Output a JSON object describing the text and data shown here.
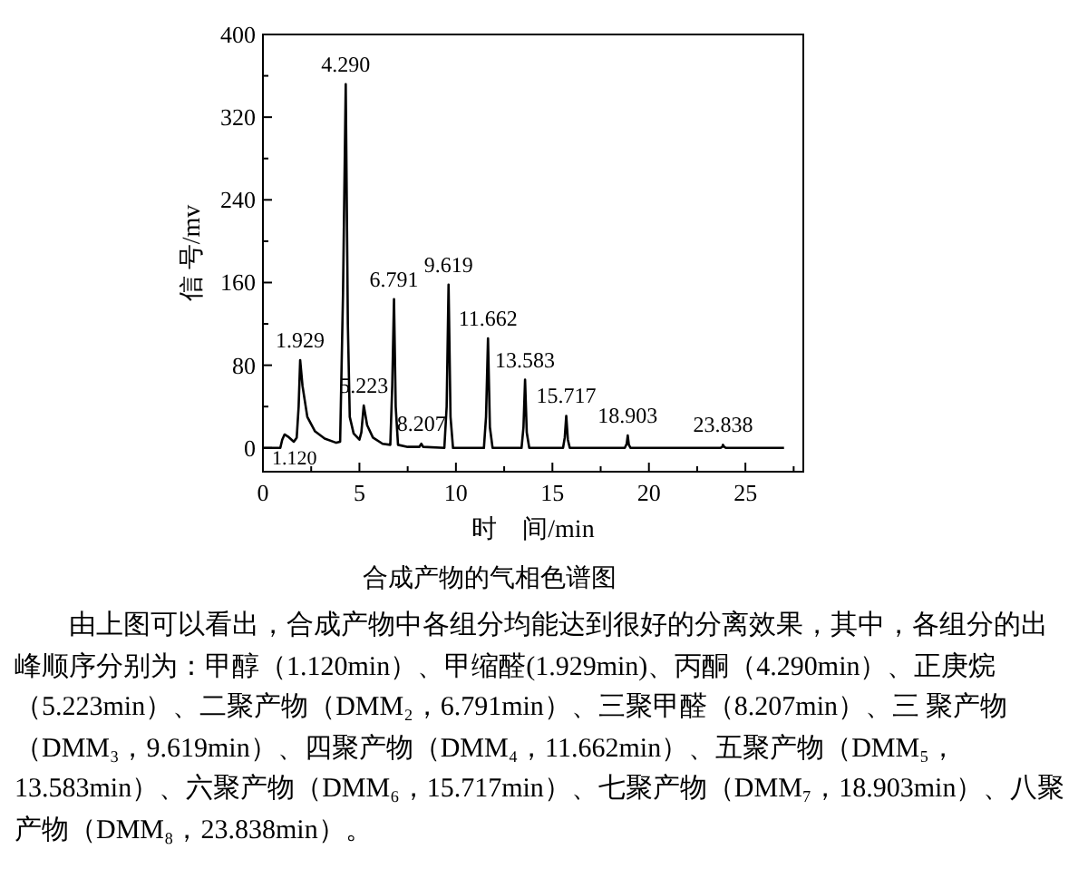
{
  "chart_data": {
    "type": "line",
    "xlabel": "时　间/min",
    "ylabel": "信 号/mv",
    "xlim": [
      0,
      28
    ],
    "ylim": [
      -23,
      400
    ],
    "xticks": [
      0,
      {
        "value": 2.5,
        "label": null
      },
      5,
      {
        "value": 7.5,
        "label": null
      },
      10,
      {
        "value": 12.5,
        "label": null
      },
      15,
      {
        "value": 17.5,
        "label": null
      },
      20,
      {
        "value": 22.5,
        "label": null
      },
      25,
      {
        "value": 27.5,
        "label": null
      }
    ],
    "yticks": [
      0,
      {
        "value": 40,
        "label": null
      },
      80,
      {
        "value": 120,
        "label": null
      },
      160,
      {
        "value": 200,
        "label": null
      },
      240,
      {
        "value": 280,
        "label": null
      },
      320,
      {
        "value": 360,
        "label": null
      },
      400
    ],
    "grid": false,
    "marker": "none",
    "line_style": "solid",
    "series": [
      {
        "color": "#000000",
        "x": [
          0,
          0.9,
          1.0,
          1.12,
          1.3,
          1.6,
          1.75,
          1.85,
          1.929,
          2.05,
          2.3,
          2.7,
          3.2,
          3.8,
          4.0,
          4.15,
          4.29,
          4.4,
          4.5,
          4.7,
          5.0,
          5.1,
          5.223,
          5.4,
          5.7,
          6.2,
          6.6,
          6.7,
          6.791,
          6.88,
          7.0,
          7.5,
          8.1,
          8.207,
          8.3,
          9.4,
          9.52,
          9.619,
          9.72,
          9.85,
          11.45,
          11.56,
          11.662,
          11.76,
          11.9,
          13.4,
          13.5,
          13.583,
          13.67,
          13.8,
          15.55,
          15.64,
          15.717,
          15.8,
          15.9,
          18.75,
          18.85,
          18.903,
          18.96,
          19.05,
          23.7,
          23.8,
          23.838,
          23.9,
          24.0,
          27.0
        ],
        "values": [
          0,
          0,
          8,
          13,
          11,
          6,
          10,
          40,
          85,
          60,
          30,
          16,
          9,
          5,
          6,
          150,
          352,
          120,
          30,
          14,
          8,
          15,
          41,
          22,
          10,
          4,
          3,
          60,
          144,
          40,
          3,
          1,
          1,
          4,
          1,
          0,
          40,
          158,
          30,
          0,
          0,
          30,
          106,
          20,
          0,
          0,
          20,
          66,
          15,
          0,
          0,
          10,
          31,
          8,
          0,
          0,
          4,
          12,
          3,
          0,
          0,
          1,
          3,
          1,
          0,
          0
        ]
      }
    ],
    "annotations": [
      {
        "text": "1.120",
        "x": 1.12,
        "y": 13
      },
      {
        "text": "1.929",
        "x": 1.929,
        "y": 85
      },
      {
        "text": "4.290",
        "x": 4.29,
        "y": 352
      },
      {
        "text": "5.223",
        "x": 5.223,
        "y": 41
      },
      {
        "text": "6.791",
        "x": 6.791,
        "y": 144
      },
      {
        "text": "8.207",
        "x": 8.207,
        "y": 4
      },
      {
        "text": "9.619",
        "x": 9.619,
        "y": 158
      },
      {
        "text": "11.662",
        "x": 11.662,
        "y": 106
      },
      {
        "text": "13.583",
        "x": 13.583,
        "y": 66
      },
      {
        "text": "15.717",
        "x": 15.717,
        "y": 31
      },
      {
        "text": "18.903",
        "x": 18.903,
        "y": 12
      },
      {
        "text": "23.838",
        "x": 23.838,
        "y": 3
      },
      "合成产物的气相色谱图",
      "由上图可以看出，合成产物中各组分均能达到很好的分离效果，其中，各组分的出峰顺序分别为：甲醇（1.120min）、甲缩醛(1.929min)、丙酮（4.290min）、正庚烷（5.223min）、二聚产物（DMM₂，6.791min）、三聚甲醛（8.207min）、三 聚产物（DMM₃，9.619min）、四聚产物（DMM₄，11.662min）、五聚产物（DMM₅，13.583min）、六聚产物（DMM₆，15.717min）、七聚产物（DMM₇，18.903min）、八聚产物（DMM₈，23.838min）。"
    ]
  }
}
